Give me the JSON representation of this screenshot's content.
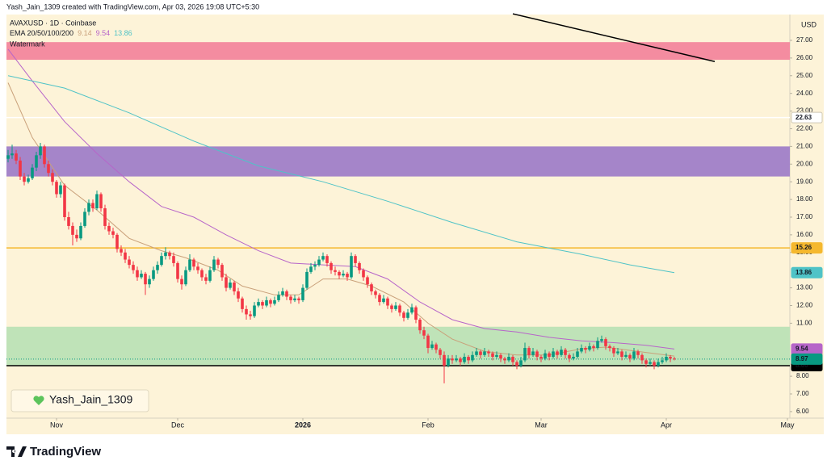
{
  "chart_data": {
    "type": "candlestick",
    "header": "Yash_Jain_1309 created with TradingView.com, Apr 03, 2026 19:08 UTC+5:30",
    "title": "AVAXUSD · 1D · Coinbase",
    "watermark": "Watermark",
    "signature": "Yash_Jain_1309",
    "brand": "TradingView",
    "currency": "USD",
    "up_color": "#089981",
    "down_color": "#f23645",
    "background": "#fdf3d8",
    "open": [
      20.3,
      20.5,
      20.6,
      20.2,
      19.3,
      19.0,
      19.2,
      19.8,
      20.5,
      21.0,
      20.0,
      19.5,
      19.0,
      18.3,
      18.8,
      17.0,
      16.5,
      16.0,
      15.8,
      16.5,
      17.3,
      17.8,
      17.5,
      18.3,
      17.5,
      16.5,
      16.2,
      16.0,
      15.2,
      15.0,
      14.6,
      14.3,
      14.0,
      13.6,
      13.8,
      13.2,
      13.5,
      14.0,
      14.3,
      14.8,
      15.0,
      14.8,
      14.4,
      13.5,
      13.2,
      14.0,
      14.6,
      14.2,
      14.0,
      13.6,
      13.4,
      14.0,
      14.6,
      14.3,
      13.6,
      13.0,
      13.3,
      12.8,
      12.4,
      11.8,
      11.5,
      11.4,
      12.0,
      12.2,
      12.0,
      12.3,
      12.1,
      12.3,
      12.6,
      12.8,
      12.5,
      12.3,
      12.4,
      12.3,
      13.0,
      13.9,
      14.2,
      14.3,
      14.6,
      14.8,
      14.4,
      14.0,
      13.9,
      13.7,
      13.8,
      13.6,
      14.8,
      14.4,
      14.0,
      13.6,
      13.2,
      12.8,
      12.6,
      12.2,
      12.4,
      12.0,
      11.8,
      12.0,
      11.6,
      11.3,
      11.6,
      11.9,
      11.2,
      10.6,
      10.3,
      9.6,
      9.8,
      9.5,
      9.2,
      8.6,
      9.0,
      8.9,
      9.0,
      8.8,
      9.1,
      8.9,
      9.2,
      9.4,
      9.2,
      9.4,
      9.3,
      9.1,
      9.2,
      9.0,
      8.9,
      9.1,
      8.8,
      8.6,
      8.9,
      9.6,
      9.2,
      9.4,
      9.1,
      9.0,
      9.3,
      9.1,
      9.4,
      9.2,
      9.5,
      9.2,
      9.0,
      9.1,
      9.4,
      9.6,
      9.5,
      9.7,
      9.6,
      10.0,
      10.1,
      9.7,
      9.6,
      9.3,
      9.4,
      9.1,
      9.2,
      9.0,
      9.4,
      9.2,
      8.9,
      8.7,
      8.8,
      8.6,
      8.8,
      8.9,
      9.1,
      9.0
    ],
    "high": [
      20.8,
      21.1,
      20.8,
      20.4,
      19.5,
      19.4,
      20.0,
      20.7,
      21.2,
      21.1,
      20.2,
      19.7,
      19.1,
      19.0,
      18.9,
      17.3,
      16.7,
      16.3,
      16.7,
      17.5,
      18.0,
      18.0,
      18.5,
      18.4,
      17.7,
      16.7,
      16.4,
      16.1,
      15.4,
      15.2,
      14.8,
      14.5,
      14.2,
      14.0,
      13.9,
      13.7,
      14.2,
      14.5,
      15.0,
      15.3,
      15.1,
      15.0,
      14.5,
      13.7,
      14.2,
      14.9,
      14.7,
      14.4,
      14.1,
      13.8,
      14.2,
      14.8,
      14.7,
      14.4,
      13.8,
      13.5,
      13.4,
      13.0,
      12.5,
      12.0,
      11.7,
      12.2,
      12.4,
      12.3,
      12.5,
      12.4,
      12.5,
      12.8,
      13.0,
      12.9,
      12.6,
      12.6,
      12.5,
      13.2,
      14.1,
      14.4,
      14.5,
      14.8,
      15.0,
      14.9,
      14.5,
      14.2,
      14.0,
      14.0,
      13.9,
      15.0,
      14.9,
      14.5,
      14.1,
      13.7,
      13.3,
      12.9,
      12.7,
      12.6,
      12.5,
      12.1,
      12.2,
      12.1,
      11.7,
      11.8,
      12.1,
      12.0,
      11.3,
      10.8,
      10.4,
      10.0,
      9.9,
      9.6,
      9.4,
      9.2,
      9.2,
      9.2,
      9.1,
      9.3,
      9.2,
      9.4,
      9.6,
      9.5,
      9.6,
      9.5,
      9.4,
      9.4,
      9.3,
      9.1,
      9.3,
      9.2,
      8.9,
      9.1,
      9.9,
      9.7,
      9.6,
      9.5,
      9.2,
      9.5,
      9.4,
      9.6,
      9.5,
      9.7,
      9.6,
      9.3,
      9.3,
      9.6,
      9.8,
      9.7,
      9.9,
      9.8,
      10.2,
      10.3,
      10.2,
      9.8,
      9.7,
      9.6,
      9.5,
      9.4,
      9.3,
      9.6,
      9.5,
      9.3,
      9.0,
      9.0,
      8.9,
      9.0,
      9.1,
      9.3,
      9.2,
      9.1
    ],
    "low": [
      20.1,
      20.3,
      20.0,
      19.1,
      18.8,
      18.9,
      19.1,
      19.6,
      20.3,
      19.8,
      19.3,
      18.8,
      18.1,
      18.1,
      16.8,
      16.3,
      15.4,
      15.6,
      15.7,
      16.4,
      17.1,
      17.3,
      17.4,
      17.3,
      16.3,
      16.0,
      15.8,
      15.0,
      14.8,
      14.4,
      14.1,
      13.8,
      13.4,
      13.5,
      12.6,
      13.0,
      13.4,
      13.8,
      14.2,
      14.6,
      14.6,
      14.2,
      13.3,
      12.9,
      13.1,
      13.9,
      14.0,
      13.8,
      13.4,
      13.2,
      13.3,
      13.9,
      14.1,
      13.4,
      12.8,
      12.9,
      12.6,
      12.2,
      11.6,
      11.2,
      11.2,
      11.3,
      11.9,
      11.8,
      11.9,
      11.9,
      12.0,
      12.2,
      12.5,
      12.3,
      12.1,
      12.2,
      12.1,
      12.2,
      12.9,
      13.8,
      14.0,
      14.2,
      14.5,
      14.2,
      13.8,
      13.7,
      13.5,
      13.6,
      13.4,
      13.5,
      14.2,
      13.8,
      13.4,
      13.0,
      12.6,
      12.4,
      12.0,
      12.1,
      11.8,
      11.6,
      11.7,
      11.4,
      11.1,
      11.2,
      11.5,
      11.0,
      10.4,
      10.1,
      9.3,
      9.5,
      9.3,
      9.0,
      7.6,
      8.5,
      8.7,
      8.8,
      8.6,
      8.7,
      8.7,
      8.8,
      9.1,
      9.0,
      9.1,
      9.1,
      8.9,
      9.0,
      8.8,
      8.7,
      8.8,
      8.6,
      8.4,
      8.5,
      8.8,
      9.0,
      9.1,
      8.9,
      8.8,
      8.9,
      8.9,
      9.0,
      9.0,
      9.1,
      9.0,
      8.8,
      8.9,
      9.0,
      9.3,
      9.3,
      9.4,
      9.4,
      9.5,
      9.9,
      9.5,
      9.4,
      9.1,
      9.2,
      8.9,
      9.0,
      8.8,
      8.9,
      9.0,
      8.7,
      8.5,
      8.6,
      8.4,
      8.5,
      8.7,
      8.8,
      8.8,
      8.9
    ],
    "close": [
      20.5,
      20.6,
      20.2,
      19.3,
      19.0,
      19.2,
      19.8,
      20.5,
      21.0,
      20.0,
      19.5,
      19.0,
      18.3,
      18.8,
      17.0,
      16.5,
      16.0,
      15.8,
      16.5,
      17.3,
      17.8,
      17.5,
      18.3,
      17.5,
      16.5,
      16.2,
      16.0,
      15.2,
      15.0,
      14.6,
      14.3,
      14.0,
      13.6,
      13.8,
      13.2,
      13.5,
      14.0,
      14.3,
      14.8,
      15.0,
      14.8,
      14.4,
      13.5,
      13.2,
      14.0,
      14.6,
      14.2,
      14.0,
      13.6,
      13.4,
      14.0,
      14.6,
      14.3,
      13.6,
      13.0,
      13.3,
      12.8,
      12.4,
      11.8,
      11.5,
      11.4,
      12.0,
      12.2,
      12.0,
      12.3,
      12.1,
      12.3,
      12.6,
      12.8,
      12.5,
      12.3,
      12.4,
      12.3,
      13.0,
      13.9,
      14.2,
      14.3,
      14.6,
      14.8,
      14.4,
      14.0,
      13.9,
      13.7,
      13.8,
      13.6,
      14.8,
      14.4,
      14.0,
      13.6,
      13.2,
      12.8,
      12.6,
      12.2,
      12.4,
      12.0,
      11.8,
      12.0,
      11.6,
      11.3,
      11.6,
      11.9,
      11.2,
      10.6,
      10.3,
      9.6,
      9.8,
      9.5,
      9.2,
      8.6,
      9.0,
      8.9,
      9.0,
      8.8,
      9.1,
      8.9,
      9.2,
      9.4,
      9.2,
      9.4,
      9.3,
      9.1,
      9.2,
      9.0,
      8.9,
      9.1,
      8.8,
      8.6,
      8.9,
      9.6,
      9.2,
      9.4,
      9.1,
      9.0,
      9.3,
      9.1,
      9.4,
      9.2,
      9.5,
      9.2,
      9.0,
      9.1,
      9.4,
      9.6,
      9.5,
      9.7,
      9.6,
      10.0,
      10.1,
      9.7,
      9.6,
      9.3,
      9.4,
      9.1,
      9.2,
      9.0,
      9.4,
      9.2,
      8.9,
      8.7,
      8.8,
      8.6,
      8.8,
      8.9,
      9.1,
      9.0,
      8.97
    ],
    "last_price_color": "#089981",
    "indicator": {
      "label": "EMA 20/50/100/200",
      "lines": [
        {
          "color": "#c9a07a",
          "last": 9.14,
          "x": [
            0,
            6,
            14,
            22,
            30,
            38,
            44,
            52,
            58,
            66,
            72,
            78,
            84,
            90,
            98,
            104,
            110,
            118,
            126,
            134,
            142,
            148,
            156,
            165
          ],
          "values": [
            24.6,
            21.5,
            18.8,
            17.4,
            15.8,
            15.1,
            14.7,
            14.0,
            13.1,
            12.6,
            12.6,
            13.5,
            13.5,
            13.1,
            12.2,
            11.0,
            10.1,
            9.4,
            9.2,
            9.2,
            9.55,
            9.65,
            9.4,
            9.14
          ]
        },
        {
          "color": "#b765c9",
          "last": 9.54,
          "x": [
            0,
            6,
            14,
            22,
            30,
            38,
            46,
            54,
            62,
            70,
            78,
            86,
            94,
            102,
            110,
            118,
            126,
            134,
            142,
            150,
            158,
            165
          ],
          "values": [
            26.5,
            24.7,
            22.4,
            20.6,
            19.0,
            17.6,
            17.0,
            16.0,
            15.1,
            14.4,
            14.3,
            14.2,
            13.5,
            12.2,
            11.2,
            10.7,
            10.5,
            10.2,
            10.0,
            9.9,
            9.75,
            9.54
          ]
        },
        {
          "color": "#4fc3c7",
          "last": 13.86,
          "x": [
            0,
            14,
            30,
            46,
            62,
            78,
            94,
            110,
            126,
            142,
            154,
            165
          ],
          "values": [
            25.0,
            24.3,
            22.9,
            21.3,
            19.9,
            19.0,
            17.9,
            16.7,
            15.6,
            14.9,
            14.3,
            13.86
          ]
        }
      ]
    },
    "zones": [
      {
        "low": 25.9,
        "high": 26.9,
        "color": "#f48ca0"
      },
      {
        "low": 19.3,
        "high": 21.0,
        "color": "#a585c9"
      },
      {
        "low": 8.6,
        "high": 10.8,
        "color": "#bfe3b8"
      }
    ],
    "price_lines": [
      {
        "value": 22.63,
        "label": "22.63",
        "color": "#ffffff",
        "text_color": "#131722"
      },
      {
        "value": 15.26,
        "label": "15.26",
        "color": "#f5b82e",
        "text_color": "#131722"
      },
      {
        "value": 8.6,
        "label": "8.60",
        "color": "#000000",
        "text_color": "#ffffff"
      }
    ],
    "trend_line": {
      "x": [
        125,
        175
      ],
      "values": [
        28.5,
        25.8
      ],
      "color": "#000000"
    },
    "xlim": [
      -0.4,
      193.6
    ],
    "ylim": [
      5.63,
      28.46
    ],
    "xticks": [
      {
        "value": 12,
        "label": "Nov"
      },
      {
        "value": 42,
        "label": "Dec"
      },
      {
        "value": 73,
        "label": "2026"
      },
      {
        "value": 104,
        "label": "Feb"
      },
      {
        "value": 132,
        "label": "Mar"
      },
      {
        "value": 163,
        "label": "Apr"
      },
      {
        "value": 193,
        "label": "May"
      }
    ],
    "yticks": [
      {
        "value": 27,
        "label": "27.00"
      },
      {
        "value": 26,
        "label": "26.00"
      },
      {
        "value": 25,
        "label": "25.00"
      },
      {
        "value": 24,
        "label": "24.00"
      },
      {
        "value": 23,
        "label": "23.00"
      },
      {
        "value": 22,
        "label": "22.00"
      },
      {
        "value": 21,
        "label": "21.00"
      },
      {
        "value": 20,
        "label": "20.00"
      },
      {
        "value": 19,
        "label": "19.00"
      },
      {
        "value": 18,
        "label": "18.00"
      },
      {
        "value": 17,
        "label": "17.00"
      },
      {
        "value": 16,
        "label": "16.00"
      },
      {
        "value": 15,
        "label": "15.00"
      },
      {
        "value": 13,
        "label": "13.00"
      },
      {
        "value": 12,
        "label": "12.00"
      },
      {
        "value": 11,
        "label": "11.00"
      },
      {
        "value": 8,
        "label": "8.00"
      },
      {
        "value": 7,
        "label": "7.00"
      },
      {
        "value": 6,
        "label": "6.00"
      }
    ]
  }
}
